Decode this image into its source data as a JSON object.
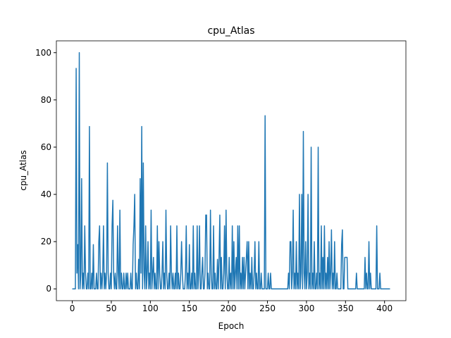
{
  "chart_data": {
    "type": "line",
    "title": "cpu_Atlas",
    "x_label": "Epoch",
    "y_label": "cpu_Atlas",
    "color": "#1f77b4",
    "xlim": [
      -20.35,
      427.35
    ],
    "ylim": [
      -5,
      105
    ],
    "xticks": [
      0,
      50,
      100,
      150,
      200,
      250,
      300,
      350,
      400
    ],
    "yticks": [
      0,
      20,
      40,
      60,
      80,
      100
    ],
    "x": [
      0,
      1,
      2,
      3,
      4,
      5,
      6,
      7,
      8,
      9,
      10,
      11,
      12,
      13,
      14,
      15,
      16,
      17,
      18,
      19,
      20,
      21,
      22,
      23,
      24,
      25,
      26,
      27,
      28,
      29,
      30,
      31,
      32,
      33,
      34,
      35,
      36,
      37,
      38,
      39,
      40,
      41,
      42,
      43,
      44,
      45,
      46,
      47,
      48,
      49,
      50,
      51,
      52,
      53,
      54,
      55,
      56,
      57,
      58,
      59,
      60,
      61,
      62,
      63,
      64,
      65,
      66,
      67,
      68,
      69,
      70,
      71,
      72,
      73,
      74,
      75,
      76,
      77,
      78,
      79,
      80,
      81,
      82,
      83,
      84,
      85,
      86,
      87,
      88,
      89,
      90,
      91,
      92,
      93,
      94,
      95,
      96,
      97,
      98,
      99,
      100,
      101,
      102,
      103,
      104,
      105,
      106,
      107,
      108,
      109,
      110,
      111,
      112,
      113,
      114,
      115,
      116,
      117,
      118,
      119,
      120,
      121,
      122,
      123,
      124,
      125,
      126,
      127,
      128,
      129,
      130,
      131,
      132,
      133,
      134,
      135,
      136,
      137,
      138,
      139,
      140,
      141,
      142,
      143,
      144,
      145,
      146,
      147,
      148,
      149,
      150,
      151,
      152,
      153,
      154,
      155,
      156,
      157,
      158,
      159,
      160,
      161,
      162,
      163,
      164,
      165,
      166,
      167,
      168,
      169,
      170,
      171,
      172,
      173,
      174,
      175,
      176,
      177,
      178,
      179,
      180,
      181,
      182,
      183,
      184,
      185,
      186,
      187,
      188,
      189,
      190,
      191,
      192,
      193,
      194,
      195,
      196,
      197,
      198,
      199,
      200,
      201,
      202,
      203,
      204,
      205,
      206,
      207,
      208,
      209,
      210,
      211,
      212,
      213,
      214,
      215,
      216,
      217,
      218,
      219,
      220,
      221,
      222,
      223,
      224,
      225,
      226,
      227,
      228,
      229,
      230,
      231,
      232,
      233,
      234,
      235,
      236,
      237,
      238,
      239,
      240,
      241,
      242,
      243,
      244,
      245,
      246,
      247,
      248,
      249,
      250,
      251,
      252,
      253,
      254,
      255,
      256,
      257,
      258,
      259,
      260,
      261,
      262,
      263,
      264,
      265,
      266,
      267,
      268,
      269,
      270,
      271,
      272,
      273,
      274,
      275,
      276,
      277,
      278,
      279,
      280,
      281,
      282,
      283,
      284,
      285,
      286,
      287,
      288,
      289,
      290,
      291,
      292,
      293,
      294,
      295,
      296,
      297,
      298,
      299,
      300,
      301,
      302,
      303,
      304,
      305,
      306,
      307,
      308,
      309,
      310,
      311,
      312,
      313,
      314,
      315,
      316,
      317,
      318,
      319,
      320,
      321,
      322,
      323,
      324,
      325,
      326,
      327,
      328,
      329,
      330,
      331,
      332,
      333,
      334,
      335,
      336,
      337,
      338,
      339,
      340,
      341,
      342,
      343,
      344,
      345,
      346,
      347,
      348,
      349,
      350,
      351,
      352,
      353,
      354,
      355,
      356,
      357,
      358,
      359,
      360,
      361,
      362,
      363,
      364,
      365,
      366,
      367,
      368,
      369,
      370,
      371,
      372,
      373,
      374,
      375,
      376,
      377,
      378,
      379,
      380,
      381,
      382,
      383,
      384,
      385,
      386,
      387,
      388,
      389,
      390,
      391,
      392,
      393,
      394,
      395,
      396,
      397,
      398,
      399,
      400,
      401,
      402,
      403,
      404,
      405,
      406,
      407
    ],
    "values": [
      0,
      0,
      0,
      0,
      0,
      93.33,
      6.67,
      18.75,
      0,
      100,
      0,
      6.67,
      46.67,
      0,
      6.67,
      0,
      26.67,
      6.67,
      0,
      0,
      6.67,
      0,
      68.75,
      0,
      0,
      6.67,
      0,
      18.75,
      0,
      0,
      0,
      6.67,
      0,
      0,
      20,
      26.67,
      0,
      6.67,
      0,
      6.67,
      26.67,
      0,
      6.67,
      0,
      6.67,
      53.33,
      6.67,
      0,
      0,
      6.67,
      0,
      26.67,
      37.5,
      6.67,
      0,
      6.67,
      0,
      0,
      26.67,
      6.67,
      0,
      33.33,
      0,
      6.67,
      0,
      0,
      6.67,
      0,
      0,
      6.67,
      0,
      6.67,
      0,
      0,
      0,
      6.67,
      0,
      0,
      18.75,
      26.67,
      40,
      0,
      6.67,
      0,
      0,
      12.5,
      0,
      46.67,
      6.67,
      68.75,
      0,
      53.33,
      6.67,
      0,
      26.67,
      0,
      6.67,
      20,
      0,
      6.67,
      0,
      33.33,
      0,
      6.67,
      13.33,
      0,
      6.67,
      0,
      0,
      26.67,
      0,
      20,
      6.67,
      0,
      0,
      6.67,
      20,
      0,
      6.67,
      0,
      33.33,
      6.67,
      0,
      0,
      6.67,
      0,
      26.67,
      6.67,
      0,
      6.67,
      0,
      0,
      6.67,
      0,
      26.67,
      0,
      6.67,
      0,
      0,
      6.67,
      20,
      6.67,
      0,
      0,
      0,
      6.67,
      26.67,
      0,
      6.67,
      0,
      18.75,
      0,
      0,
      6.67,
      0,
      26.67,
      0,
      6.67,
      0,
      0,
      26.67,
      0,
      6.67,
      26.67,
      0,
      0,
      6.67,
      13.33,
      0,
      0,
      6.67,
      31.25,
      31.25,
      0,
      6.67,
      0,
      0,
      33.33,
      6.67,
      0,
      0,
      26.67,
      0,
      6.67,
      0,
      0,
      12.5,
      0,
      13.33,
      31.25,
      0,
      13.33,
      0,
      0,
      6.67,
      26.67,
      0,
      33.33,
      6.67,
      0,
      0,
      13.33,
      0,
      6.67,
      0,
      26.67,
      0,
      20,
      0,
      6.67,
      13.33,
      0,
      26.67,
      0,
      26.67,
      0,
      6.67,
      0,
      13.33,
      0,
      13.33,
      0,
      6.67,
      13.33,
      20,
      0,
      20,
      0,
      6.67,
      0,
      13.33,
      0,
      0,
      6.67,
      20,
      0,
      6.67,
      0,
      0,
      20,
      0,
      0,
      6.67,
      0,
      0,
      0,
      0,
      73.33,
      0,
      0,
      0,
      6.67,
      0,
      0,
      6.67,
      0,
      0,
      0,
      0,
      0,
      0,
      0,
      0,
      0,
      0,
      0,
      0,
      0,
      0,
      0,
      0,
      0,
      0,
      0,
      0,
      0,
      0,
      6.67,
      0,
      20,
      20,
      0,
      6.67,
      33.33,
      0,
      6.67,
      0,
      20,
      0,
      6.67,
      0,
      40,
      0,
      6.67,
      40,
      0,
      66.67,
      6.67,
      0,
      20,
      0,
      6.67,
      40,
      0,
      6.67,
      0,
      60,
      0,
      6.67,
      0,
      20,
      0,
      0,
      6.67,
      0,
      60,
      0,
      6.67,
      0,
      26.67,
      0,
      13.33,
      0,
      26.67,
      0,
      6.67,
      0,
      13.33,
      0,
      20,
      0,
      6.67,
      25,
      0,
      6.67,
      0,
      20,
      0,
      0,
      6.67,
      0,
      0,
      0,
      0,
      0,
      18.75,
      25,
      0,
      0,
      13.33,
      13.33,
      13.33,
      13.33,
      0,
      0,
      0,
      0,
      0,
      0,
      0,
      0,
      0,
      0,
      0,
      6.67,
      0,
      0,
      0,
      0,
      0,
      0,
      0,
      0,
      0,
      0,
      13.33,
      0,
      6.67,
      0,
      0,
      20,
      0,
      6.67,
      0,
      0,
      0,
      0,
      0,
      0,
      0,
      26.67,
      0,
      0,
      0,
      6.67,
      0,
      0,
      0,
      0,
      0,
      0,
      0,
      0,
      0,
      0,
      0,
      0,
      0
    ]
  }
}
